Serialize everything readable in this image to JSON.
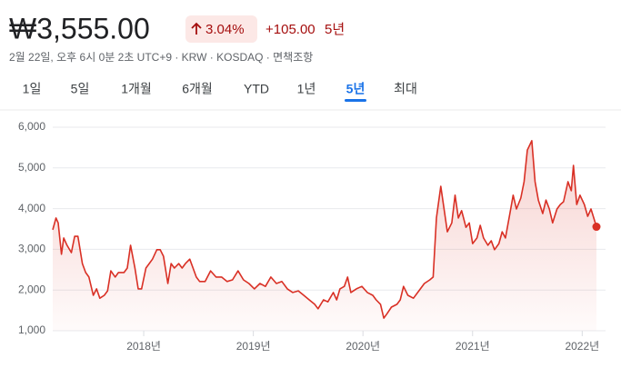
{
  "header": {
    "price": "₩3,555.00",
    "change_percent": "3.04%",
    "change": "+105.00",
    "period": "5년",
    "info": "2월 22일, 오후 6시 0분 2초 UTC+9 · KRW · KOSDAQ · 면책조항"
  },
  "tabs": {
    "items": [
      "1일",
      "5일",
      "1개월",
      "6개월",
      "YTD",
      "1년",
      "5년",
      "최대"
    ],
    "selected": 6
  },
  "chart_data": {
    "type": "line",
    "color": "#d93025",
    "grid": true,
    "xlim": [
      2017.17,
      2022.13
    ],
    "xticks": [
      {
        "value": 2018,
        "label": "2018년"
      },
      {
        "value": 2019,
        "label": "2019년"
      },
      {
        "value": 2020,
        "label": "2020년"
      },
      {
        "value": 2021,
        "label": "2021년"
      },
      {
        "value": 2022,
        "label": "2022년"
      }
    ],
    "ylim": [
      1000,
      6000
    ],
    "yticks": [
      {
        "value": 1000,
        "label": "1,000"
      },
      {
        "value": 2000,
        "label": "2,000"
      },
      {
        "value": 3000,
        "label": "3,000"
      },
      {
        "value": 4000,
        "label": "4,000"
      },
      {
        "value": 5000,
        "label": "5,000"
      },
      {
        "value": 6000,
        "label": "6,000"
      }
    ],
    "x": [
      2017.17,
      2017.2,
      2017.22,
      2017.25,
      2017.27,
      2017.3,
      2017.34,
      2017.37,
      2017.4,
      2017.44,
      2017.47,
      2017.5,
      2017.54,
      2017.57,
      2017.6,
      2017.64,
      2017.67,
      2017.7,
      2017.74,
      2017.77,
      2017.82,
      2017.85,
      2017.88,
      2017.92,
      2017.95,
      2017.98,
      2018.02,
      2018.05,
      2018.08,
      2018.12,
      2018.15,
      2018.18,
      2018.22,
      2018.25,
      2018.28,
      2018.32,
      2018.35,
      2018.38,
      2018.42,
      2018.45,
      2018.48,
      2018.51,
      2018.56,
      2018.61,
      2018.66,
      2018.71,
      2018.76,
      2018.81,
      2018.86,
      2018.91,
      2018.96,
      2019.01,
      2019.06,
      2019.11,
      2019.16,
      2019.21,
      2019.26,
      2019.31,
      2019.36,
      2019.41,
      2019.46,
      2019.51,
      2019.56,
      2019.59,
      2019.64,
      2019.68,
      2019.73,
      2019.76,
      2019.79,
      2019.83,
      2019.86,
      2019.89,
      2019.94,
      2019.99,
      2020.04,
      2020.09,
      2020.12,
      2020.16,
      2020.19,
      2020.22,
      2020.26,
      2020.31,
      2020.34,
      2020.37,
      2020.41,
      2020.46,
      2020.51,
      2020.56,
      2020.61,
      2020.64,
      2020.67,
      2020.71,
      2020.74,
      2020.77,
      2020.81,
      2020.84,
      2020.87,
      2020.9,
      2020.94,
      2020.97,
      2021.0,
      2021.04,
      2021.07,
      2021.1,
      2021.14,
      2021.17,
      2021.2,
      2021.24,
      2021.27,
      2021.3,
      2021.34,
      2021.37,
      2021.4,
      2021.44,
      2021.47,
      2021.5,
      2021.54,
      2021.57,
      2021.6,
      2021.64,
      2021.67,
      2021.7,
      2021.73,
      2021.77,
      2021.8,
      2021.83,
      2021.87,
      2021.9,
      2021.92,
      2021.95,
      2021.98,
      2022.02,
      2022.05,
      2022.08,
      2022.13
    ],
    "values": [
      3480,
      3770,
      3650,
      2880,
      3280,
      3100,
      2920,
      3320,
      3320,
      2650,
      2430,
      2320,
      1870,
      2030,
      1800,
      1870,
      1980,
      2470,
      2320,
      2430,
      2430,
      2540,
      3100,
      2540,
      2030,
      2030,
      2540,
      2650,
      2760,
      2990,
      2990,
      2830,
      2160,
      2650,
      2540,
      2650,
      2540,
      2650,
      2760,
      2540,
      2320,
      2210,
      2210,
      2470,
      2320,
      2320,
      2210,
      2250,
      2470,
      2250,
      2160,
      2030,
      2160,
      2090,
      2320,
      2160,
      2210,
      2030,
      1940,
      1980,
      1870,
      1760,
      1650,
      1540,
      1760,
      1710,
      1940,
      1760,
      2030,
      2090,
      2320,
      1940,
      2030,
      2090,
      1940,
      1870,
      1760,
      1650,
      1310,
      1420,
      1580,
      1650,
      1760,
      2090,
      1870,
      1800,
      1980,
      2160,
      2250,
      2320,
      3770,
      4550,
      3990,
      3430,
      3650,
      4330,
      3770,
      3950,
      3540,
      3650,
      3140,
      3280,
      3590,
      3280,
      3100,
      3210,
      2990,
      3140,
      3430,
      3280,
      3880,
      4330,
      3990,
      4260,
      4660,
      5440,
      5670,
      4660,
      4210,
      3880,
      4210,
      3990,
      3650,
      3990,
      4100,
      4170,
      4660,
      4440,
      5060,
      4100,
      4330,
      4100,
      3810,
      3990,
      3555
    ]
  }
}
